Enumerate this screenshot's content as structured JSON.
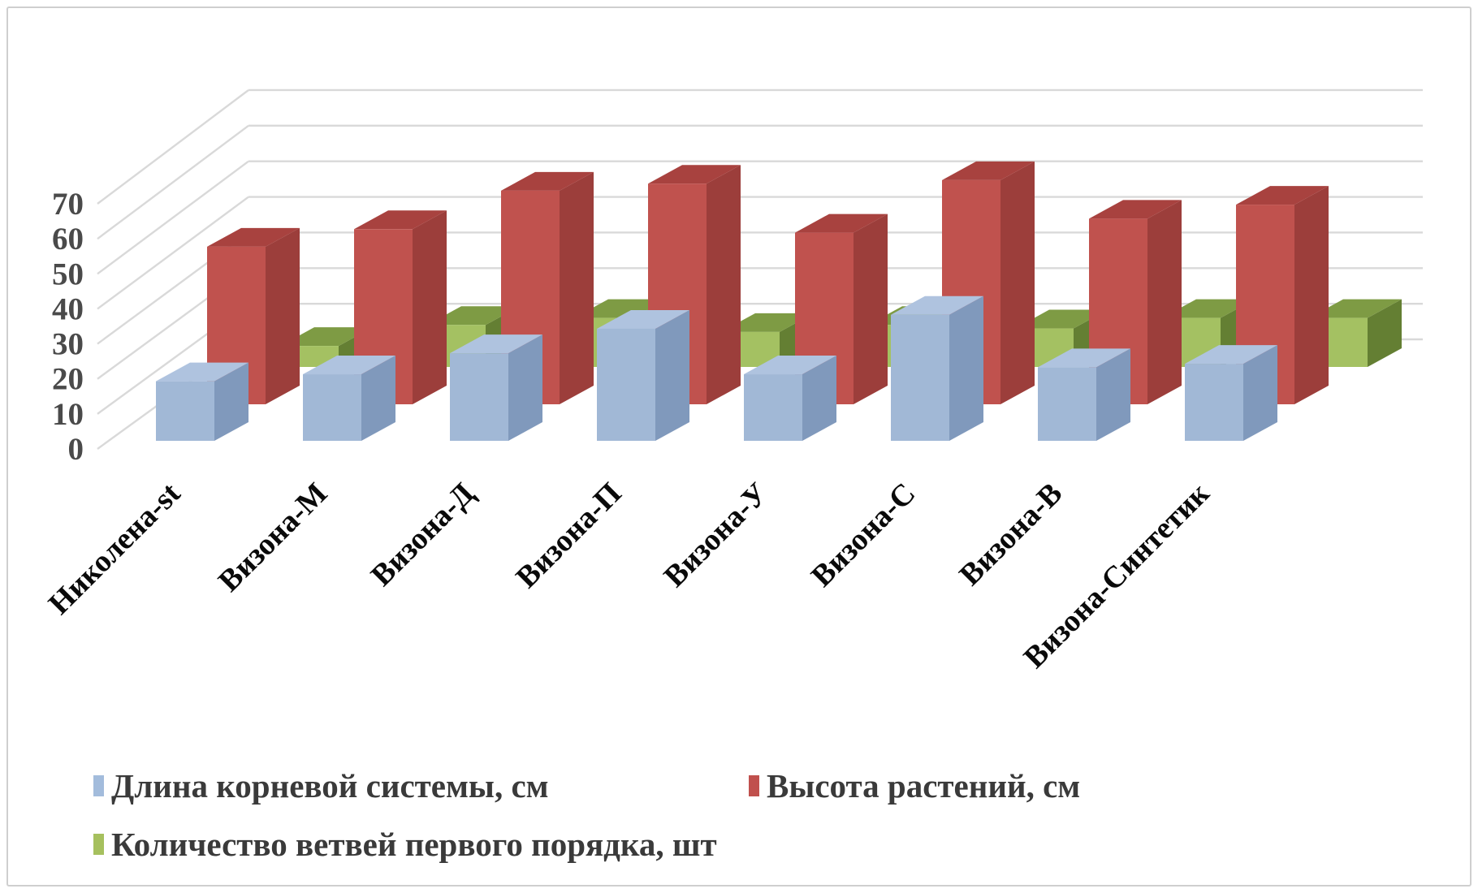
{
  "chart_data": {
    "type": "bar",
    "subtype": "3d-column-series-in-depth",
    "title": "",
    "categories": [
      "Николена-st",
      "Визона-М",
      "Визона-Д",
      "Визона-П",
      "Визона-У",
      "Визона-С",
      "Визона-В",
      "Визона-Синтетик"
    ],
    "series": [
      {
        "name": "Длина корневой системы, см",
        "depth_row": "front",
        "values": [
          17,
          19,
          25,
          32,
          19,
          36,
          21,
          22
        ],
        "colors": {
          "front": "#A1B8D6",
          "top": "#AFC3DF",
          "side": "#8099BC",
          "swatch": "#A3BCDC"
        }
      },
      {
        "name": "Высота растений, см",
        "depth_row": "middle",
        "values": [
          45,
          50,
          61,
          63,
          49,
          64,
          53,
          57
        ],
        "colors": {
          "front": "#C0524E",
          "top": "#A8423F",
          "side": "#9C3E3B",
          "swatch": "#C0504D"
        }
      },
      {
        "name": "Количество ветвей первого порядка, шт",
        "depth_row": "back",
        "values": [
          6,
          12,
          14,
          10,
          12,
          11,
          14,
          14
        ],
        "colors": {
          "front": "#A4C162",
          "top": "#7E9B44",
          "side": "#647F33",
          "swatch": "#A6C05E"
        }
      }
    ],
    "yticks": [
      "0",
      "10",
      "20",
      "30",
      "40",
      "50",
      "60",
      "70"
    ],
    "ylim": [
      0,
      70
    ],
    "ytick_step": 10,
    "grid": true,
    "legend_position": "bottom"
  },
  "colors": {
    "grid": "#D9D9D9",
    "axis_text": "#4A4A4A",
    "category_text": "#0A0A0A",
    "legend_text": "#3A3A3A",
    "frame": "#CFCFCF",
    "background": "#FFFFFF"
  }
}
